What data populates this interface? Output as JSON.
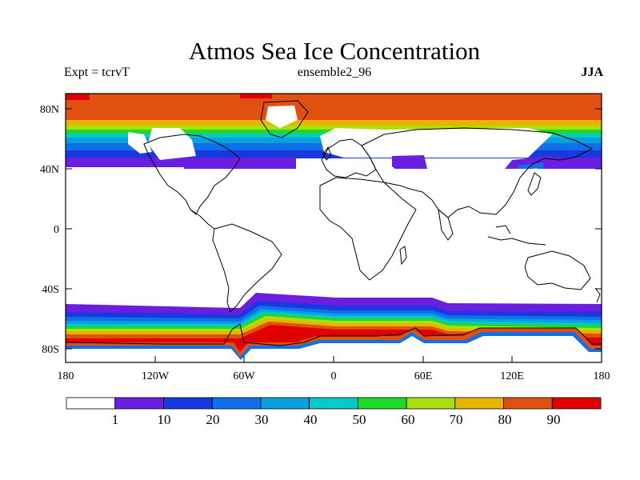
{
  "title": "Atmos Sea Ice Concentration",
  "subtitle_left": "Expt = tcrvT",
  "subtitle_center": "ensemble2_96",
  "subtitle_right": "JJA",
  "map": {
    "lat_ticks": [
      "80N",
      "40N",
      "0",
      "40S",
      "80S"
    ],
    "lon_ticks": [
      "180",
      "120W",
      "60W",
      "0",
      "60E",
      "120E",
      "180"
    ]
  },
  "colorbar": {
    "labels": [
      "1",
      "10",
      "20",
      "30",
      "40",
      "50",
      "60",
      "70",
      "80",
      "90"
    ],
    "colors": [
      "#ffffff",
      "#6a1ee0",
      "#1838e0",
      "#1070e8",
      "#0aa0e0",
      "#08c8c8",
      "#20d828",
      "#a8e010",
      "#e8b400",
      "#e05010",
      "#e00000"
    ]
  },
  "colors": {
    "land_outline": "#000000",
    "ice_90plus": "#e00000",
    "ice_80_90": "#e05010",
    "ice_70_80": "#e8b400",
    "ice_60_70": "#a8e010",
    "ice_50_60": "#20d828",
    "ice_40_50": "#08c8c8",
    "ice_30_40": "#0aa0e0",
    "ice_20_30": "#1070e8",
    "ice_10_20": "#1838e0",
    "ice_1_10": "#6a1ee0"
  }
}
